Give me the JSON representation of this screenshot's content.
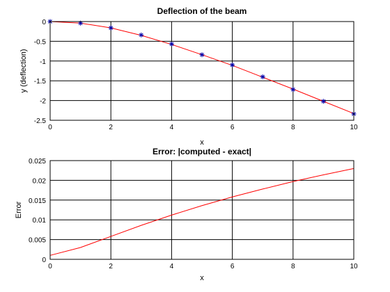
{
  "chart_data": [
    {
      "type": "line",
      "title": "Deflection of the beam",
      "xlabel": "",
      "ylabel": "y (deflection)",
      "xlim": [
        0,
        10
      ],
      "ylim": [
        -2.5,
        0
      ],
      "xticks": [
        0,
        2,
        4,
        6,
        8,
        10
      ],
      "yticks": [
        -2.5,
        -2,
        -1.5,
        -1,
        -0.5,
        0
      ],
      "xtick_labels": [
        "0",
        "2",
        "4",
        "6",
        "8",
        "10"
      ],
      "ytick_labels": [
        "-2.5",
        "-2",
        "-1.5",
        "-1",
        "-0.5",
        "0"
      ],
      "grid": true,
      "series": [
        {
          "style": "line",
          "color": "#ff0000",
          "x": [
            0,
            1,
            2,
            3,
            4,
            5,
            6,
            7,
            8,
            9,
            10
          ],
          "y": [
            0,
            -0.04,
            -0.16,
            -0.35,
            -0.58,
            -0.84,
            -1.11,
            -1.41,
            -1.71,
            -2.02,
            -2.33
          ]
        },
        {
          "style": "marker",
          "marker": "asterisk",
          "color": "#0000aa",
          "x": [
            0,
            1,
            2,
            3,
            4,
            5,
            6,
            7,
            8,
            9,
            10
          ],
          "y": [
            0,
            -0.04,
            -0.16,
            -0.34,
            -0.57,
            -0.84,
            -1.1,
            -1.4,
            -1.72,
            -2.02,
            -2.34
          ]
        }
      ]
    },
    {
      "type": "line",
      "title": "Error: |computed - exact|",
      "xlabel": "x",
      "ylabel": "Error",
      "xlim": [
        0,
        10
      ],
      "ylim": [
        0,
        0.025
      ],
      "xticks": [
        0,
        2,
        4,
        6,
        8,
        10
      ],
      "yticks": [
        0,
        0.005,
        0.01,
        0.015,
        0.02,
        0.025
      ],
      "xtick_labels": [
        "0",
        "2",
        "4",
        "6",
        "8",
        "10"
      ],
      "ytick_labels": [
        "0",
        "0.005",
        "0.01",
        "0.015",
        "0.02",
        "0.025"
      ],
      "grid": true,
      "series": [
        {
          "style": "line",
          "color": "#ff0000",
          "x": [
            0,
            1,
            2,
            3,
            4,
            5,
            6,
            7,
            8,
            9,
            10
          ],
          "y": [
            0.001,
            0.003,
            0.0058,
            0.0086,
            0.0112,
            0.0136,
            0.0158,
            0.0178,
            0.0197,
            0.0214,
            0.023
          ]
        }
      ]
    }
  ],
  "shared_xlabel": "x"
}
